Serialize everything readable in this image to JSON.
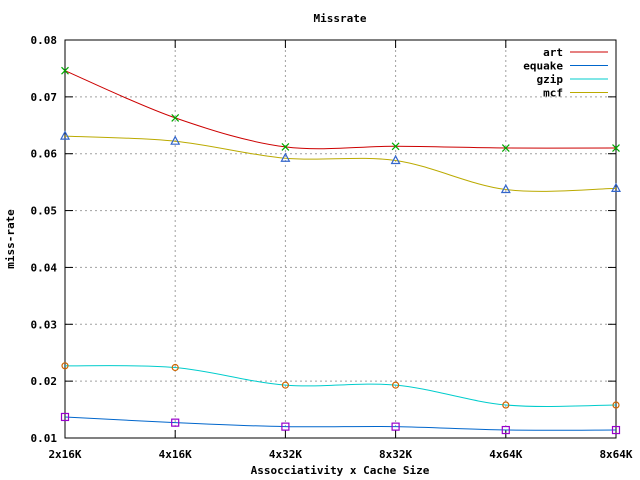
{
  "chart_data": {
    "type": "line",
    "title": "Missrate",
    "xlabel": "Assocciativity x Cache Size",
    "ylabel": "miss-rate",
    "categories": [
      "2x16K",
      "4x16K",
      "4x32K",
      "8x32K",
      "4x64K",
      "8x64K"
    ],
    "ylim": [
      0.01,
      0.08
    ],
    "yticks": [
      "0.01",
      "0.02",
      "0.03",
      "0.04",
      "0.05",
      "0.06",
      "0.07",
      "0.08"
    ],
    "grid": true,
    "legend_position": "top-right",
    "series": [
      {
        "name": "art",
        "color": "#cc0000",
        "marker_color": "#00aa00",
        "marker": "x",
        "values": [
          0.0746,
          0.0663,
          0.0612,
          0.0613,
          0.061,
          0.061
        ]
      },
      {
        "name": "equake",
        "color": "#0066cc",
        "marker_color": "#9900cc",
        "marker": "square",
        "values": [
          0.0137,
          0.0127,
          0.012,
          0.012,
          0.0114,
          0.0114
        ]
      },
      {
        "name": "gzip",
        "color": "#00cccc",
        "marker_color": "#cc6600",
        "marker": "circle",
        "values": [
          0.0227,
          0.0224,
          0.0193,
          0.0193,
          0.0158,
          0.0158
        ]
      },
      {
        "name": "mcf",
        "color": "#bbaa00",
        "marker_color": "#3366cc",
        "marker": "triangle",
        "values": [
          0.0631,
          0.0622,
          0.0592,
          0.0588,
          0.0537,
          0.0539
        ]
      }
    ]
  }
}
